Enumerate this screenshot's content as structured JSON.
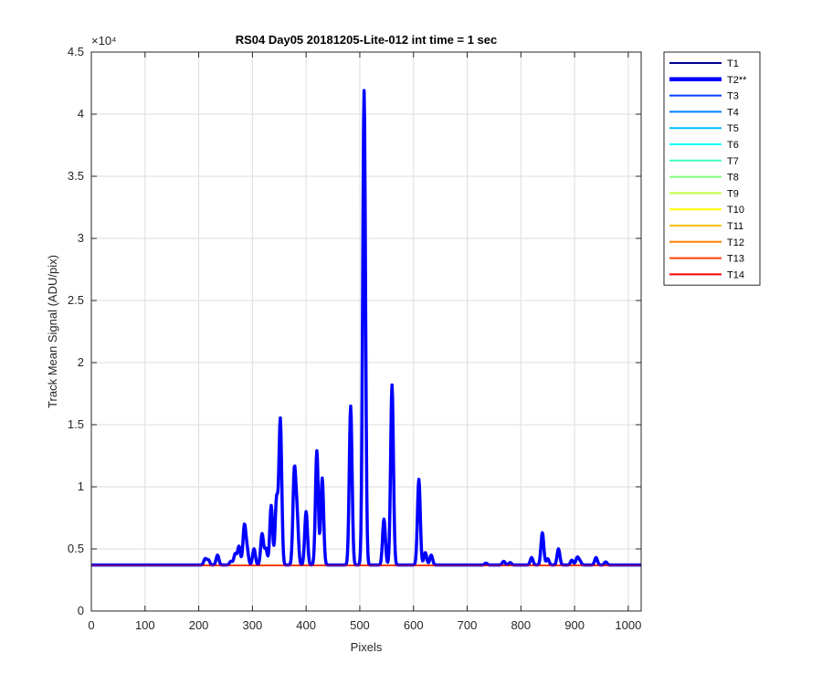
{
  "chart_data": {
    "type": "line",
    "title": "RS04 Day05 20181205-Lite-012 int time = 1 sec",
    "xlabel": "Pixels",
    "ylabel": "Track Mean Signal (ADU/pix)",
    "xlim": [
      0,
      1024
    ],
    "ylim": [
      0,
      45000
    ],
    "y_exponent_label": "×10⁴",
    "xticks": [
      0,
      100,
      200,
      300,
      400,
      500,
      600,
      700,
      800,
      900,
      1000
    ],
    "yticks": [
      0,
      5000,
      10000,
      15000,
      20000,
      25000,
      30000,
      35000,
      40000,
      45000
    ],
    "ytick_labels": [
      "0",
      "0.5",
      "1",
      "1.5",
      "2",
      "2.5",
      "3",
      "3.5",
      "4",
      "4.5"
    ],
    "grid": true,
    "legend_position": "outside-top-right",
    "baseline": 3700,
    "series": [
      {
        "name": "T1",
        "color": "#00008f",
        "baseline": 3650
      },
      {
        "name": "T2**",
        "color": "#0000ff",
        "emphasized": true,
        "baseline": 3700,
        "peaks": [
          [
            212,
            4200
          ],
          [
            218,
            4100
          ],
          [
            235,
            4500
          ],
          [
            260,
            4000
          ],
          [
            268,
            4600
          ],
          [
            275,
            5200
          ],
          [
            285,
            6800
          ],
          [
            290,
            4900
          ],
          [
            303,
            5000
          ],
          [
            318,
            6200
          ],
          [
            325,
            5000
          ],
          [
            335,
            8500
          ],
          [
            345,
            9000
          ],
          [
            352,
            15400
          ],
          [
            378,
            11000
          ],
          [
            383,
            7600
          ],
          [
            400,
            8000
          ],
          [
            420,
            12900
          ],
          [
            430,
            10700
          ],
          [
            483,
            16500
          ],
          [
            508,
            41900
          ],
          [
            545,
            7400
          ],
          [
            560,
            18200
          ],
          [
            610,
            10600
          ],
          [
            622,
            4700
          ],
          [
            633,
            4500
          ],
          [
            735,
            3850
          ],
          [
            768,
            4000
          ],
          [
            780,
            3900
          ],
          [
            820,
            4300
          ],
          [
            840,
            6300
          ],
          [
            850,
            4200
          ],
          [
            870,
            5000
          ],
          [
            895,
            4100
          ],
          [
            905,
            4300
          ],
          [
            910,
            4000
          ],
          [
            940,
            4300
          ],
          [
            958,
            3950
          ]
        ]
      },
      {
        "name": "T3",
        "color": "#0040ff",
        "baseline": 3700
      },
      {
        "name": "T4",
        "color": "#0080ff",
        "baseline": 3700
      },
      {
        "name": "T5",
        "color": "#00bfff",
        "baseline": 3700
      },
      {
        "name": "T6",
        "color": "#00ffff",
        "baseline": 3700
      },
      {
        "name": "T7",
        "color": "#40ffbf",
        "baseline": 3700
      },
      {
        "name": "T8",
        "color": "#80ff80",
        "baseline": 3700
      },
      {
        "name": "T9",
        "color": "#bfff40",
        "baseline": 3700
      },
      {
        "name": "T10",
        "color": "#ffff00",
        "baseline": 3700
      },
      {
        "name": "T11",
        "color": "#ffbf00",
        "baseline": 3680
      },
      {
        "name": "T12",
        "color": "#ff8000",
        "baseline": 3660
      },
      {
        "name": "T13",
        "color": "#ff4000",
        "baseline": 3670
      },
      {
        "name": "T14",
        "color": "#ff0000",
        "baseline": 3680
      }
    ]
  }
}
